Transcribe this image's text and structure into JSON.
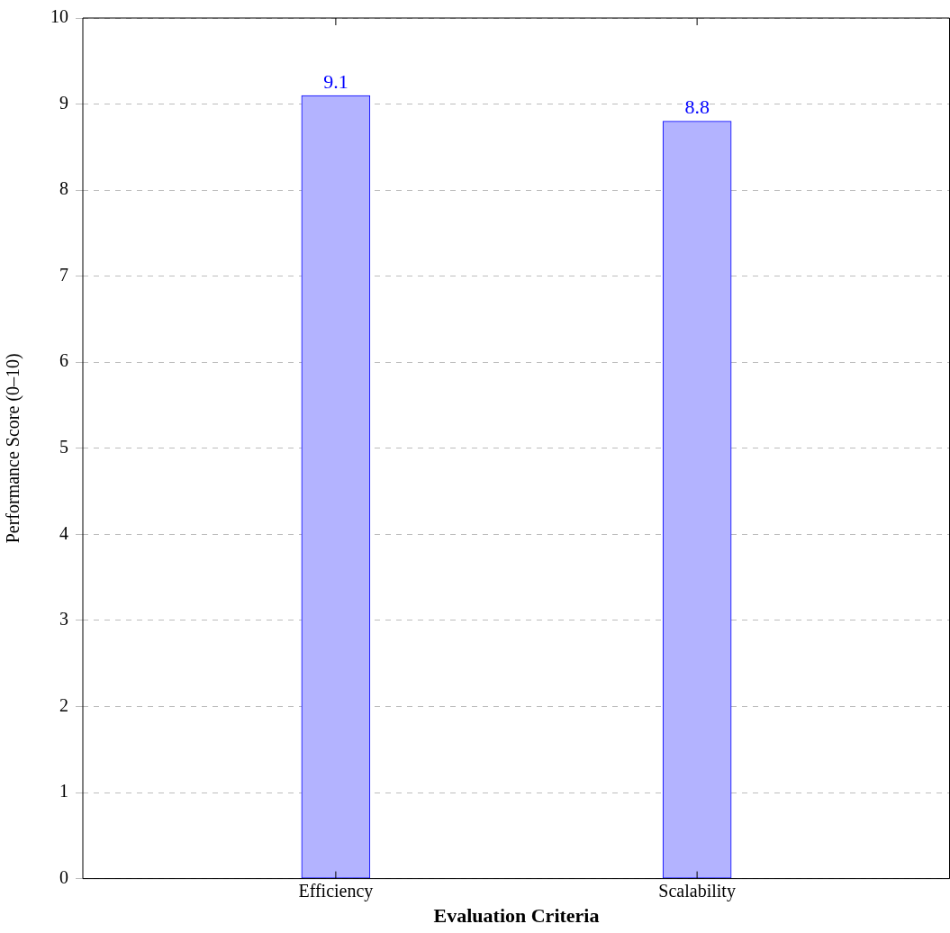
{
  "chart_data": {
    "type": "bar",
    "xlabel": "Evaluation Criteria",
    "ylabel": "Performance Score (0–10)",
    "categories": [
      "Efficiency",
      "Scalability"
    ],
    "values": [
      9.1,
      8.8
    ],
    "color": "#b3b3ff",
    "ylim": [
      0,
      10
    ],
    "yticks": [
      0,
      1,
      2,
      3,
      4,
      5,
      6,
      7,
      8,
      9,
      10
    ],
    "grid": "y",
    "data_labels": true,
    "legend": false
  }
}
